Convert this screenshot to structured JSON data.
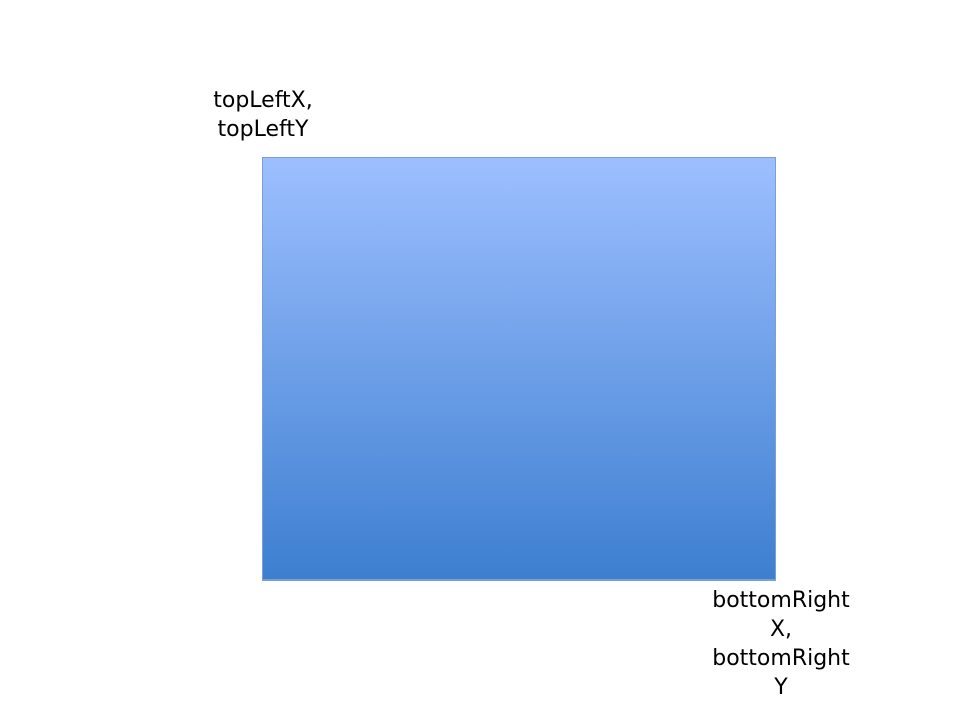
{
  "diagram": {
    "top_left_label": {
      "lines": [
        "topLeftX,",
        "topLeftY"
      ]
    },
    "bottom_right_label": {
      "lines": [
        "bottomRight",
        "X,",
        "bottomRight",
        "Y"
      ]
    }
  },
  "colors": {
    "rect_gradient_top": "#9dbfff",
    "rect_gradient_bottom": "#3d7fd0",
    "rect_border": "#7b9fd0",
    "background": "#ffffff",
    "text": "#000000"
  }
}
